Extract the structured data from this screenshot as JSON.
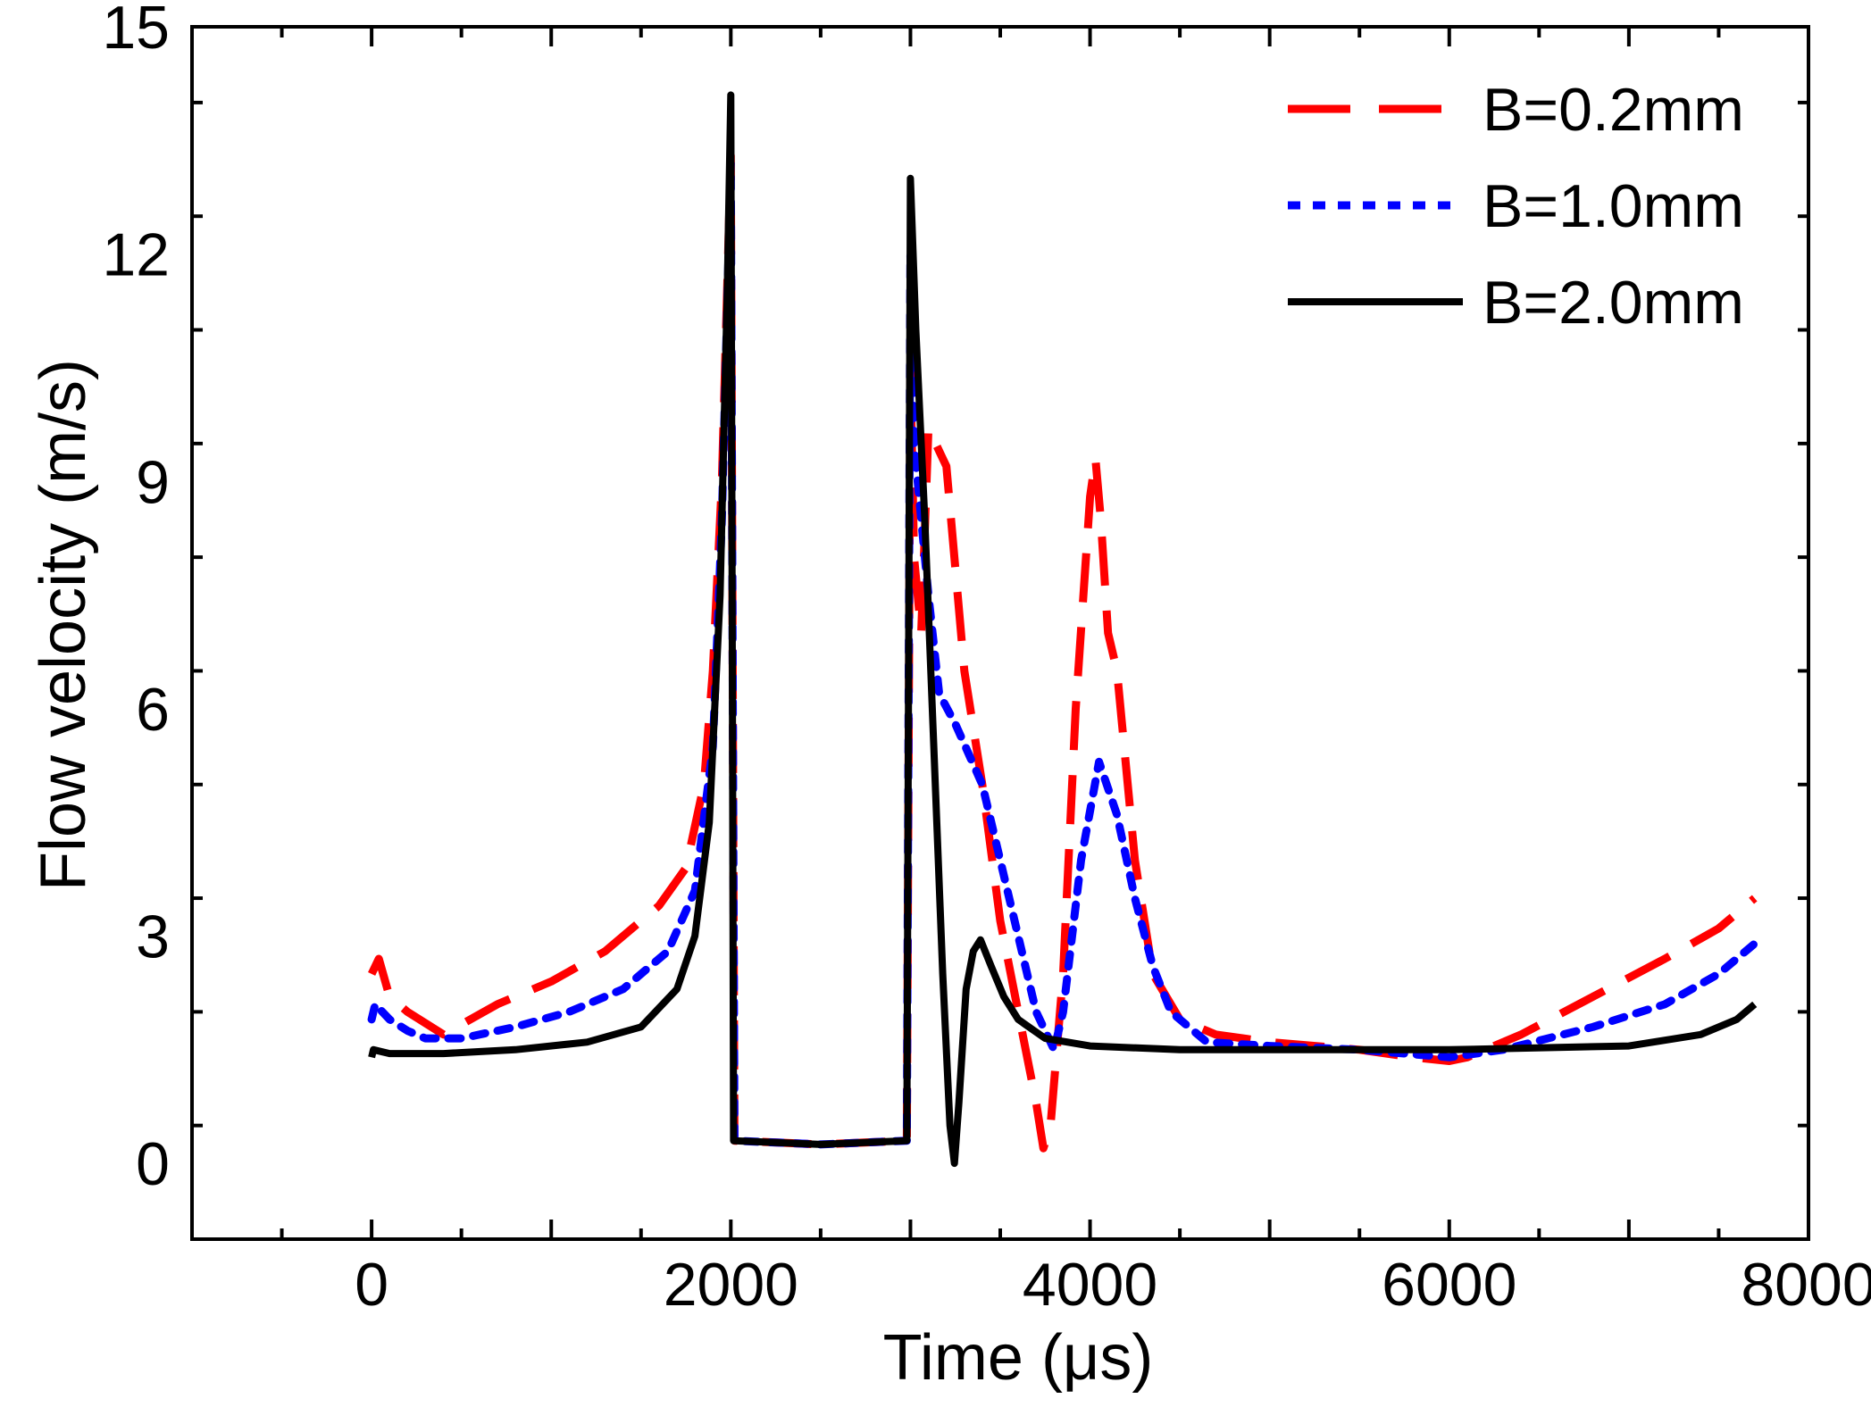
{
  "chart_data": {
    "type": "line",
    "title": "",
    "xlabel": "Time (μs)",
    "ylabel": "Flow velocity (m/s)",
    "xlim": [
      -1000,
      8000
    ],
    "ylim": [
      -1,
      15
    ],
    "xticks": [
      0,
      2000,
      4000,
      6000,
      8000
    ],
    "yticks": [
      0,
      3,
      6,
      9,
      12,
      15
    ],
    "xtick_labels": [
      "0",
      "2000",
      "4000",
      "6000",
      "8000"
    ],
    "ytick_labels": [
      "0",
      "3",
      "6",
      "9",
      "12",
      "15"
    ],
    "legend_position": "top-right",
    "series": [
      {
        "name": "B=0.2mm",
        "color": "#ff0000",
        "style": "dashed",
        "points": [
          [
            0,
            2.5
          ],
          [
            40,
            2.7
          ],
          [
            100,
            2.2
          ],
          [
            200,
            2.0
          ],
          [
            400,
            1.7
          ],
          [
            700,
            2.1
          ],
          [
            1000,
            2.4
          ],
          [
            1300,
            2.8
          ],
          [
            1600,
            3.4
          ],
          [
            1750,
            3.9
          ],
          [
            1850,
            5.0
          ],
          [
            1900,
            6.5
          ],
          [
            1950,
            9.0
          ],
          [
            2000,
            13.3
          ],
          [
            2020,
            0.3
          ],
          [
            2500,
            0.25
          ],
          [
            2980,
            0.3
          ],
          [
            3000,
            10.5
          ],
          [
            3020,
            8.0
          ],
          [
            3060,
            7.0
          ],
          [
            3100,
            9.7
          ],
          [
            3200,
            9.2
          ],
          [
            3300,
            6.5
          ],
          [
            3400,
            5.0
          ],
          [
            3500,
            3.2
          ],
          [
            3600,
            2.0
          ],
          [
            3700,
            0.8
          ],
          [
            3740,
            0.2
          ],
          [
            3780,
            0.5
          ],
          [
            3850,
            2.5
          ],
          [
            3920,
            6.0
          ],
          [
            4000,
            8.8
          ],
          [
            4030,
            9.3
          ],
          [
            4060,
            8.5
          ],
          [
            4100,
            7.0
          ],
          [
            4150,
            6.5
          ],
          [
            4250,
            4.0
          ],
          [
            4350,
            2.5
          ],
          [
            4500,
            1.9
          ],
          [
            4700,
            1.7
          ],
          [
            5000,
            1.6
          ],
          [
            5500,
            1.5
          ],
          [
            5800,
            1.4
          ],
          [
            6000,
            1.35
          ],
          [
            6100,
            1.4
          ],
          [
            6400,
            1.7
          ],
          [
            6800,
            2.2
          ],
          [
            7200,
            2.7
          ],
          [
            7500,
            3.1
          ],
          [
            7700,
            3.5
          ]
        ]
      },
      {
        "name": "B=1.0mm",
        "color": "#0000ff",
        "style": "dotted",
        "points": [
          [
            0,
            1.9
          ],
          [
            20,
            2.1
          ],
          [
            100,
            1.9
          ],
          [
            200,
            1.75
          ],
          [
            300,
            1.65
          ],
          [
            500,
            1.65
          ],
          [
            800,
            1.8
          ],
          [
            1100,
            2.0
          ],
          [
            1400,
            2.3
          ],
          [
            1650,
            2.8
          ],
          [
            1800,
            3.6
          ],
          [
            1900,
            5.5
          ],
          [
            1950,
            8.5
          ],
          [
            2000,
            13.2
          ],
          [
            2020,
            0.3
          ],
          [
            2500,
            0.25
          ],
          [
            2980,
            0.3
          ],
          [
            3000,
            12.0
          ],
          [
            3020,
            9.5
          ],
          [
            3060,
            8.5
          ],
          [
            3100,
            7.5
          ],
          [
            3160,
            6.2
          ],
          [
            3250,
            5.8
          ],
          [
            3400,
            5.0
          ],
          [
            3500,
            4.0
          ],
          [
            3600,
            3.0
          ],
          [
            3700,
            2.0
          ],
          [
            3800,
            1.5
          ],
          [
            3850,
            2.0
          ],
          [
            3950,
            4.0
          ],
          [
            4050,
            5.3
          ],
          [
            4150,
            4.6
          ],
          [
            4250,
            3.5
          ],
          [
            4350,
            2.6
          ],
          [
            4450,
            2.0
          ],
          [
            4650,
            1.6
          ],
          [
            5000,
            1.55
          ],
          [
            5500,
            1.5
          ],
          [
            6000,
            1.4
          ],
          [
            6300,
            1.5
          ],
          [
            6800,
            1.8
          ],
          [
            7200,
            2.1
          ],
          [
            7500,
            2.5
          ],
          [
            7700,
            2.9
          ]
        ]
      },
      {
        "name": "B=2.0mm",
        "color": "#000000",
        "style": "solid",
        "points": [
          [
            0,
            1.4
          ],
          [
            10,
            1.5
          ],
          [
            100,
            1.45
          ],
          [
            400,
            1.45
          ],
          [
            800,
            1.5
          ],
          [
            1200,
            1.6
          ],
          [
            1500,
            1.8
          ],
          [
            1700,
            2.3
          ],
          [
            1800,
            3.0
          ],
          [
            1880,
            4.5
          ],
          [
            1940,
            7.5
          ],
          [
            1980,
            11.5
          ],
          [
            2000,
            14.1
          ],
          [
            2015,
            0.3
          ],
          [
            2500,
            0.25
          ],
          [
            2980,
            0.3
          ],
          [
            3000,
            13.0
          ],
          [
            3030,
            11.0
          ],
          [
            3080,
            8.5
          ],
          [
            3130,
            5.5
          ],
          [
            3180,
            2.5
          ],
          [
            3220,
            0.5
          ],
          [
            3245,
            0.0
          ],
          [
            3270,
            0.8
          ],
          [
            3310,
            2.3
          ],
          [
            3350,
            2.8
          ],
          [
            3390,
            2.95
          ],
          [
            3450,
            2.6
          ],
          [
            3520,
            2.2
          ],
          [
            3600,
            1.9
          ],
          [
            3750,
            1.65
          ],
          [
            4000,
            1.55
          ],
          [
            4500,
            1.5
          ],
          [
            5000,
            1.5
          ],
          [
            6000,
            1.5
          ],
          [
            7000,
            1.55
          ],
          [
            7400,
            1.7
          ],
          [
            7600,
            1.9
          ],
          [
            7700,
            2.1
          ]
        ]
      }
    ]
  }
}
